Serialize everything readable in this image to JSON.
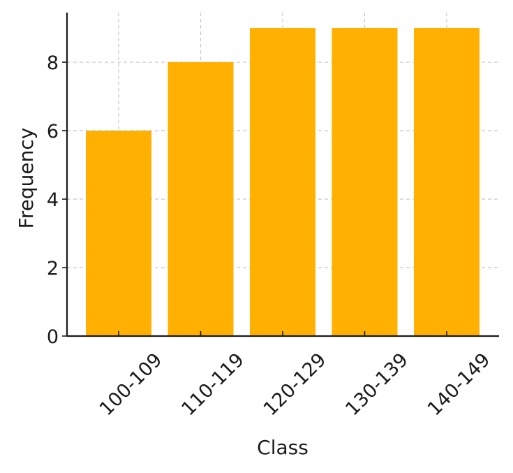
{
  "chart_data": {
    "type": "bar",
    "categories": [
      "100-109",
      "110-119",
      "120-129",
      "130-139",
      "140-149"
    ],
    "values": [
      6,
      8,
      9,
      9,
      9
    ],
    "xlabel": "Class",
    "ylabel": "Frequency",
    "ylim": [
      0,
      9.45
    ],
    "yticks": [
      0,
      2,
      4,
      6,
      8
    ],
    "grid": true,
    "bar_color": "#ffb000",
    "x_tick_rotation_deg": -45
  }
}
